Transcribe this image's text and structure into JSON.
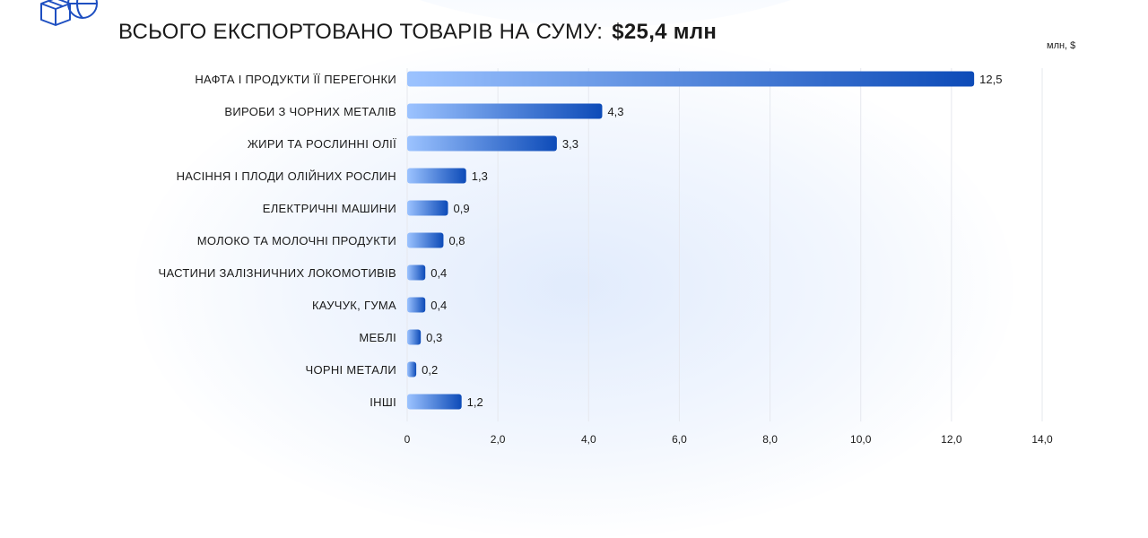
{
  "header": {
    "subtitle": "ВСЬОГО ЕКСПОРТОВАНО ТОВАРІВ НА СУМУ:",
    "total": "$25,4 млн"
  },
  "unit_label": "млн, $",
  "colors": {
    "bar_start": "#9cc3ff",
    "bar_end": "#0d4bb8",
    "grid": "#e6e8ee",
    "logo": "#1e4fc1"
  },
  "chart_data": {
    "type": "bar",
    "orientation": "horizontal",
    "categories": [
      "НАФТА І ПРОДУКТИ ЇЇ ПЕРЕГОНКИ",
      "ВИРОБИ З ЧОРНИХ МЕТАЛІВ",
      "ЖИРИ ТА РОСЛИННІ ОЛІЇ",
      "НАСІННЯ І ПЛОДИ ОЛІЙНИХ РОСЛИН",
      "ЕЛЕКТРИЧНІ МАШИНИ",
      "МОЛОКО ТА МОЛОЧНІ ПРОДУКТИ",
      "ЧАСТИНИ ЗАЛІЗНИЧНИХ ЛОКОМОТИВІВ",
      "КАУЧУК, ГУМА",
      "МЕБЛІ",
      "ЧОРНІ МЕТАЛИ",
      "ІНШІ"
    ],
    "values": [
      12.5,
      4.3,
      3.3,
      1.3,
      0.9,
      0.8,
      0.4,
      0.4,
      0.3,
      0.2,
      1.2
    ],
    "value_labels": [
      "12,5",
      "4,3",
      "3,3",
      "1,3",
      "0,9",
      "0,8",
      "0,4",
      "0,4",
      "0,3",
      "0,2",
      "1,2"
    ],
    "xlim": [
      0,
      14
    ],
    "x_ticks": [
      0,
      2,
      4,
      6,
      8,
      10,
      12,
      14
    ],
    "x_tick_labels": [
      "0",
      "2,0",
      "4,0",
      "6,0",
      "8,0",
      "10,0",
      "12,0",
      "14,0"
    ],
    "grid": true
  }
}
